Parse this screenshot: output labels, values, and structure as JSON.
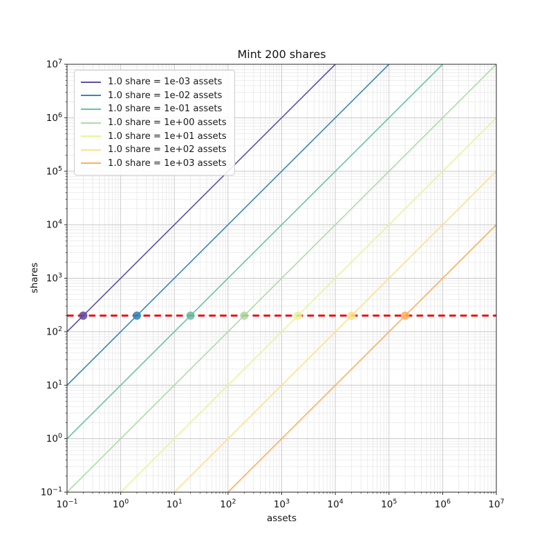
{
  "chart_data": {
    "type": "line",
    "title": "Mint 200 shares",
    "xlabel": "assets",
    "ylabel": "shares",
    "xscale": "log",
    "yscale": "log",
    "xlim": [
      0.1,
      10000000
    ],
    "ylim": [
      0.1,
      10000000
    ],
    "tick_exponents": [
      -1,
      0,
      1,
      2,
      3,
      4,
      5,
      6,
      7
    ],
    "grid": "both",
    "legend_position": "upper left",
    "series": [
      {
        "label": "1.0 share = 1e-03 assets",
        "assets_per_share": 0.001,
        "color": "#5e4fa2",
        "point": {
          "assets": 0.2,
          "shares": 200
        }
      },
      {
        "label": "1.0 share = 1e-02 assets",
        "assets_per_share": 0.01,
        "color": "#3288bd",
        "point": {
          "assets": 2,
          "shares": 200
        }
      },
      {
        "label": "1.0 share = 1e-01 assets",
        "assets_per_share": 0.1,
        "color": "#66c2a5",
        "point": {
          "assets": 20,
          "shares": 200
        }
      },
      {
        "label": "1.0 share = 1e+00 assets",
        "assets_per_share": 1,
        "color": "#abdda4",
        "point": {
          "assets": 200,
          "shares": 200
        }
      },
      {
        "label": "1.0 share = 1e+01 assets",
        "assets_per_share": 10,
        "color": "#e6f598",
        "point": {
          "assets": 2000,
          "shares": 200
        }
      },
      {
        "label": "1.0 share = 1e+02 assets",
        "assets_per_share": 100,
        "color": "#fee08b",
        "point": {
          "assets": 20000,
          "shares": 200
        }
      },
      {
        "label": "1.0 share = 1e+03 assets",
        "assets_per_share": 1000,
        "color": "#fdae61",
        "point": {
          "assets": 200000,
          "shares": 200
        }
      }
    ],
    "hline": {
      "shares": 200,
      "color": "#ee0000",
      "style": "dashed"
    },
    "style_colors": {
      "major_grid": "#c6c6c6",
      "minor_grid": "#e3e3e3",
      "spine": "#262626",
      "tick_label": "#111111"
    }
  }
}
